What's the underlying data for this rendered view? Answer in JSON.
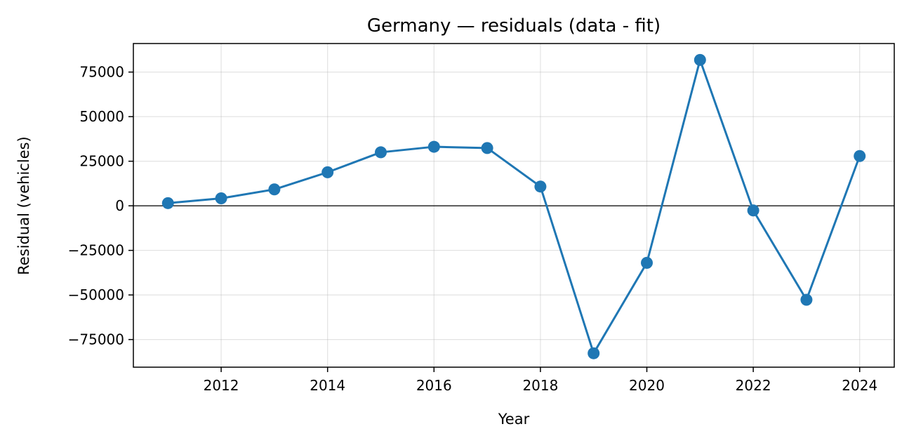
{
  "chart_data": {
    "type": "line",
    "title": "Germany — residuals (data - fit)",
    "xlabel": "Year",
    "ylabel": "Residual (vehicles)",
    "xlim": [
      2010.35,
      2024.65
    ],
    "ylim": [
      -90500,
      91000
    ],
    "x_ticks": [
      2012,
      2014,
      2016,
      2018,
      2020,
      2022,
      2024
    ],
    "y_ticks": [
      -75000,
      -50000,
      -25000,
      0,
      25000,
      50000,
      75000
    ],
    "x_tick_labels": [
      "2012",
      "2014",
      "2016",
      "2018",
      "2020",
      "2022",
      "2024"
    ],
    "y_tick_labels": [
      "−75000",
      "−50000",
      "−25000",
      "0",
      "25000",
      "50000",
      "75000"
    ],
    "grid": true,
    "zero_line": true,
    "series_color": "#1f77b4",
    "series": [
      {
        "x": [
          2011,
          2012,
          2013,
          2014,
          2015,
          2016,
          2017,
          2018,
          2019,
          2020,
          2021,
          2022,
          2023,
          2024
        ],
        "y": [
          1500,
          4200,
          9200,
          18800,
          30000,
          33100,
          32400,
          10800,
          -82700,
          -32000,
          81800,
          -2600,
          -52700,
          27900
        ]
      }
    ]
  }
}
